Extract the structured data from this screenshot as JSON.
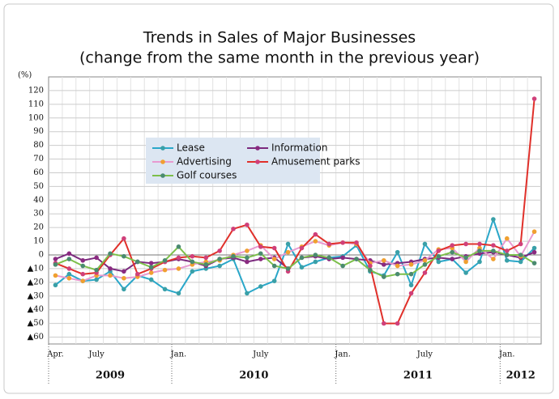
{
  "chart_data": {
    "type": "line",
    "title": "Trends in Sales of Major Businesses",
    "subtitle": "(change from the same month in the previous year)",
    "y_label": "(%)",
    "categories": [
      "Apr.",
      null,
      null,
      "July",
      null,
      null,
      null,
      null,
      null,
      "Jan.",
      null,
      null,
      null,
      null,
      null,
      "July",
      null,
      null,
      null,
      null,
      null,
      "Jan.",
      null,
      null,
      null,
      null,
      null,
      "July",
      null,
      null,
      null,
      null,
      null,
      "Jan.",
      null,
      null
    ],
    "x_groups": [
      {
        "label": "2009",
        "count": 9
      },
      {
        "label": "2010",
        "count": 12
      },
      {
        "label": "2011",
        "count": 12
      },
      {
        "label": "2012",
        "count": 3
      }
    ],
    "ylim": [
      -65,
      130
    ],
    "yticks": [
      {
        "value": -60,
        "label": "▲60"
      },
      {
        "value": -50,
        "label": "▲50"
      },
      {
        "value": -40,
        "label": "▲40"
      },
      {
        "value": -30,
        "label": "▲30"
      },
      {
        "value": -20,
        "label": "▲20"
      },
      {
        "value": -10,
        "label": "▲10"
      },
      0,
      10,
      20,
      30,
      40,
      50,
      60,
      70,
      80,
      90,
      100,
      110,
      120
    ],
    "grid": true,
    "legend": "upper left",
    "series": [
      {
        "name": "Lease",
        "color": "#2aa7c9",
        "marker": "#3aa0a8",
        "values": [
          -22,
          -14,
          -19,
          -18,
          -12,
          -25,
          -15,
          -18,
          -25,
          -28,
          -12,
          -10,
          -8,
          -3,
          -28,
          -23,
          -19,
          8,
          -9,
          -5,
          -2,
          -1,
          7,
          -12,
          -15,
          2,
          -22,
          8,
          -5,
          -3,
          -13,
          -5,
          26,
          -4,
          -5,
          5
        ]
      },
      {
        "name": "Information",
        "color": "#7b2a7e",
        "marker": "#8a2a80",
        "values": [
          -3,
          1,
          -4,
          -2,
          -10,
          -12,
          -5,
          -6,
          -5,
          -3,
          -5,
          -8,
          -3,
          -2,
          -5,
          -3,
          -2,
          -10,
          -2,
          -1,
          -3,
          -2,
          -3,
          -4,
          -7,
          -6,
          -5,
          -3,
          -2,
          -3,
          -1,
          1,
          2,
          0,
          -2,
          2
        ]
      },
      {
        "name": "Advertising",
        "color": "#e89ad0",
        "marker": "#f0a030",
        "values": [
          -15,
          -17,
          -19,
          -15,
          -15,
          -17,
          -16,
          -13,
          -11,
          -10,
          -7,
          -5,
          -4,
          0,
          3,
          7,
          -3,
          2,
          6,
          10,
          7,
          9,
          8,
          -6,
          -4,
          -8,
          -7,
          -4,
          4,
          5,
          -5,
          5,
          -3,
          12,
          -1,
          17
        ]
      },
      {
        "name": "Amusement parks",
        "color": "#e0302a",
        "marker": "#d0407a",
        "values": [
          -6,
          -10,
          -14,
          -13,
          0,
          12,
          -14,
          -10,
          -5,
          -2,
          -1,
          -2,
          3,
          19,
          22,
          6,
          5,
          -12,
          5,
          15,
          8,
          9,
          9,
          -8,
          -50,
          -50,
          -28,
          -13,
          3,
          7,
          8,
          8,
          7,
          3,
          8,
          114
        ]
      },
      {
        "name": "Golf courses",
        "color": "#7cbf4a",
        "marker": "#4a8a70",
        "values": [
          -7,
          -3,
          -8,
          -11,
          1,
          -1,
          -5,
          -9,
          -4,
          6,
          -5,
          -7,
          -3,
          -1,
          -2,
          1,
          -8,
          -10,
          -2,
          0,
          -2,
          -8,
          -3,
          -11,
          -16,
          -14,
          -14,
          -7,
          -1,
          2,
          -2,
          3,
          3,
          0,
          0,
          -6
        ]
      }
    ]
  }
}
